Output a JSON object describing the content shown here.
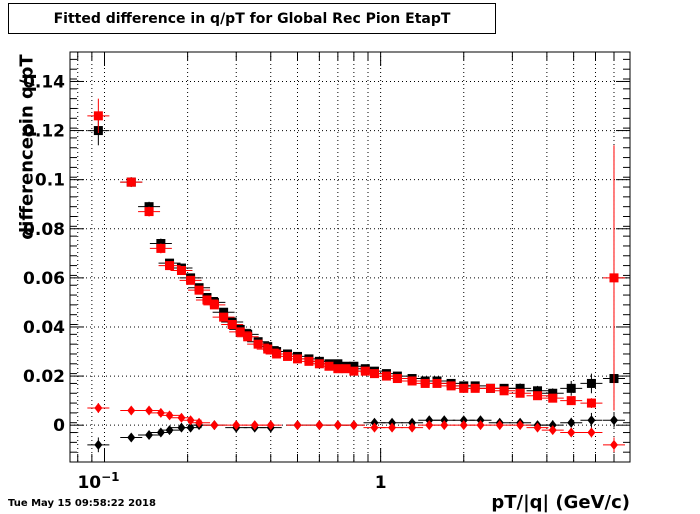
{
  "title": "Fitted difference in q/pT for Global Rec Pion EtapT",
  "timestamp": "Tue May 15 09:58:22 2018",
  "chart_data": {
    "type": "scatter",
    "title": "Fitted difference in q/pT for Global Rec Pion EtapT",
    "xlabel": "pT/|q| (GeV/c)",
    "ylabel": "differencepin q/pT",
    "xscale": "log",
    "xlim": [
      0.075,
      8.0
    ],
    "ylim": [
      -0.015,
      0.152
    ],
    "grid": true,
    "x_ticks": [
      {
        "value": 0.1,
        "base": "10",
        "exp": "−1"
      },
      {
        "value": 1,
        "label": "1"
      }
    ],
    "y_ticks": [
      0,
      0.02,
      0.04,
      0.06,
      0.08,
      0.1,
      0.12,
      0.14
    ],
    "y_tick_labels": [
      "0",
      "0.02",
      "0.04",
      "0.06",
      "0.08",
      "0.1",
      "0.12",
      "0.14"
    ],
    "series": [
      {
        "marker": "square",
        "color": "#000000",
        "x": [
          0.095,
          0.125,
          0.145,
          0.16,
          0.172,
          0.19,
          0.205,
          0.22,
          0.235,
          0.25,
          0.27,
          0.29,
          0.31,
          0.33,
          0.36,
          0.39,
          0.42,
          0.46,
          0.5,
          0.55,
          0.6,
          0.65,
          0.7,
          0.75,
          0.8,
          0.88,
          0.95,
          1.05,
          1.15,
          1.3,
          1.45,
          1.6,
          1.8,
          2.0,
          2.2,
          2.5,
          2.8,
          3.2,
          3.7,
          4.2,
          4.9,
          5.8,
          7.0
        ],
        "y": [
          0.12,
          0.099,
          0.089,
          0.074,
          0.066,
          0.064,
          0.06,
          0.056,
          0.052,
          0.05,
          0.046,
          0.042,
          0.039,
          0.037,
          0.034,
          0.032,
          0.03,
          0.029,
          0.028,
          0.027,
          0.026,
          0.025,
          0.025,
          0.024,
          0.024,
          0.023,
          0.022,
          0.021,
          0.02,
          0.019,
          0.018,
          0.018,
          0.017,
          0.016,
          0.016,
          0.015,
          0.015,
          0.015,
          0.014,
          0.013,
          0.015,
          0.017,
          0.019
        ],
        "yerr": [
          0.006,
          0.002,
          0.002,
          0.002,
          0.001,
          0.001,
          0.001,
          0.001,
          0.001,
          0.001,
          0.001,
          0.001,
          0.001,
          0.001,
          0.001,
          0.001,
          0.001,
          0.001,
          0.001,
          0.001,
          0.001,
          0.001,
          0.001,
          0.001,
          0.001,
          0.001,
          0.001,
          0.001,
          0.001,
          0.001,
          0.001,
          0.001,
          0.001,
          0.001,
          0.001,
          0.001,
          0.001,
          0.002,
          0.002,
          0.002,
          0.003,
          0.004,
          0.006
        ]
      },
      {
        "marker": "square",
        "color": "#ff0000",
        "x": [
          0.095,
          0.125,
          0.145,
          0.16,
          0.172,
          0.19,
          0.205,
          0.22,
          0.235,
          0.25,
          0.27,
          0.29,
          0.31,
          0.33,
          0.36,
          0.39,
          0.42,
          0.46,
          0.5,
          0.55,
          0.6,
          0.65,
          0.7,
          0.75,
          0.8,
          0.88,
          0.95,
          1.05,
          1.15,
          1.3,
          1.45,
          1.6,
          1.8,
          2.0,
          2.2,
          2.5,
          2.8,
          3.2,
          3.7,
          4.2,
          4.9,
          5.8,
          7.0
        ],
        "y": [
          0.126,
          0.099,
          0.087,
          0.072,
          0.065,
          0.063,
          0.059,
          0.055,
          0.051,
          0.049,
          0.044,
          0.041,
          0.038,
          0.036,
          0.033,
          0.031,
          0.029,
          0.028,
          0.027,
          0.026,
          0.025,
          0.024,
          0.023,
          0.023,
          0.022,
          0.022,
          0.021,
          0.02,
          0.019,
          0.018,
          0.017,
          0.017,
          0.016,
          0.015,
          0.015,
          0.015,
          0.014,
          0.013,
          0.012,
          0.011,
          0.01,
          0.009,
          0.06
        ],
        "yerr": [
          0.007,
          0.002,
          0.002,
          0.002,
          0.001,
          0.001,
          0.001,
          0.001,
          0.001,
          0.001,
          0.001,
          0.001,
          0.001,
          0.001,
          0.001,
          0.001,
          0.001,
          0.001,
          0.001,
          0.001,
          0.001,
          0.001,
          0.001,
          0.001,
          0.001,
          0.001,
          0.001,
          0.001,
          0.001,
          0.001,
          0.001,
          0.001,
          0.001,
          0.001,
          0.001,
          0.001,
          0.001,
          0.001,
          0.001,
          0.001,
          0.001,
          0.002,
          0.054
        ]
      },
      {
        "marker": "diamond",
        "color": "#000000",
        "x": [
          0.095,
          0.125,
          0.145,
          0.16,
          0.172,
          0.19,
          0.205,
          0.22,
          0.25,
          0.3,
          0.35,
          0.4,
          0.5,
          0.6,
          0.7,
          0.8,
          0.95,
          1.1,
          1.3,
          1.5,
          1.7,
          2.0,
          2.3,
          2.7,
          3.2,
          3.7,
          4.2,
          4.9,
          5.8,
          7.0
        ],
        "y": [
          -0.008,
          -0.005,
          -0.004,
          -0.003,
          -0.002,
          -0.001,
          -0.001,
          0.0,
          0.0,
          -0.001,
          -0.001,
          -0.001,
          0.0,
          0.0,
          0.0,
          0.0,
          0.001,
          0.001,
          0.001,
          0.002,
          0.002,
          0.002,
          0.002,
          0.001,
          0.001,
          0.0,
          0.0,
          0.001,
          0.002,
          0.002
        ],
        "yerr": [
          0.003,
          0.001,
          0.001,
          0.001,
          0.001,
          0.001,
          0.001,
          0.001,
          0.001,
          0.001,
          0.001,
          0.001,
          0.001,
          0.001,
          0.001,
          0.001,
          0.001,
          0.001,
          0.001,
          0.001,
          0.001,
          0.001,
          0.001,
          0.001,
          0.001,
          0.001,
          0.002,
          0.002,
          0.003,
          0.003
        ]
      },
      {
        "marker": "diamond",
        "color": "#ff0000",
        "x": [
          0.095,
          0.125,
          0.145,
          0.16,
          0.172,
          0.19,
          0.205,
          0.22,
          0.25,
          0.3,
          0.35,
          0.4,
          0.5,
          0.6,
          0.7,
          0.8,
          0.95,
          1.1,
          1.3,
          1.5,
          1.7,
          2.0,
          2.3,
          2.7,
          3.2,
          3.7,
          4.2,
          4.9,
          5.8,
          7.0
        ],
        "y": [
          0.007,
          0.006,
          0.006,
          0.005,
          0.004,
          0.003,
          0.002,
          0.001,
          0.0,
          0.0,
          0.0,
          0.0,
          0.0,
          0.0,
          0.0,
          0.0,
          -0.001,
          -0.001,
          -0.001,
          0.0,
          0.0,
          0.0,
          0.0,
          0.0,
          0.0,
          -0.001,
          -0.002,
          -0.003,
          -0.003,
          -0.008
        ],
        "yerr": [
          0.002,
          0.001,
          0.001,
          0.001,
          0.001,
          0.001,
          0.001,
          0.001,
          0.001,
          0.001,
          0.001,
          0.001,
          0.001,
          0.001,
          0.001,
          0.001,
          0.001,
          0.001,
          0.001,
          0.001,
          0.001,
          0.001,
          0.001,
          0.001,
          0.001,
          0.001,
          0.001,
          0.001,
          0.002,
          0.003
        ]
      }
    ]
  }
}
